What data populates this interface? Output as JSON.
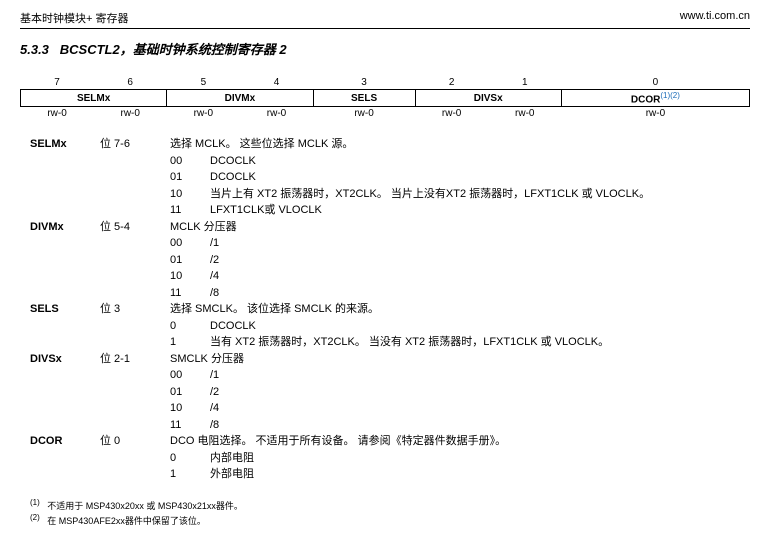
{
  "header": {
    "left": "基本时钟模块+ 寄存器",
    "right": "www.ti.com.cn"
  },
  "section": {
    "number": "5.3.3",
    "title": "BCSCTL2，基础时钟系统控制寄存器 2"
  },
  "bitsRow": [
    "7",
    "6",
    "5",
    "4",
    "3",
    "2",
    "1",
    "0"
  ],
  "fieldsRow": {
    "selmx": "SELMx",
    "divmx": "DIVMx",
    "sels": "SELS",
    "divsx": "DIVSx",
    "dcor": "DCOR",
    "dcor_sup": "(1)(2)"
  },
  "rwRow": [
    "rw-0",
    "rw-0",
    "rw-0",
    "rw-0",
    "rw-0",
    "rw-0",
    "rw-0",
    "rw-0"
  ],
  "fields": [
    {
      "name": "SELMx",
      "bits": "位 7-6",
      "summary": "选择 MCLK。 这些位选择 MCLK 源。",
      "values": [
        {
          "code": "00",
          "desc": "DCOCLK"
        },
        {
          "code": "01",
          "desc": "DCOCLK"
        },
        {
          "code": "10",
          "desc": "当片上有 XT2 振荡器时，XT2CLK。 当片上没有XT2 振荡器时，LFXT1CLK 或 VLOCLK。"
        },
        {
          "code": "11",
          "desc": "LFXT1CLK或 VLOCLK"
        }
      ]
    },
    {
      "name": "DIVMx",
      "bits": "位 5-4",
      "summary": "MCLK 分压器",
      "values": [
        {
          "code": "00",
          "desc": "/1"
        },
        {
          "code": "01",
          "desc": "/2"
        },
        {
          "code": "10",
          "desc": "/4"
        },
        {
          "code": "11",
          "desc": "/8"
        }
      ]
    },
    {
      "name": "SELS",
      "bits": "位 3",
      "summary": "选择 SMCLK。 该位选择 SMCLK 的来源。",
      "values": [
        {
          "code": "0",
          "desc": "DCOCLK"
        },
        {
          "code": "1",
          "desc": "当有 XT2 振荡器时，XT2CLK。 当没有 XT2 振荡器时，LFXT1CLK 或 VLOCLK。"
        }
      ]
    },
    {
      "name": "DIVSx",
      "bits": "位 2-1",
      "summary": "SMCLK 分压器",
      "values": [
        {
          "code": "00",
          "desc": "/1"
        },
        {
          "code": "01",
          "desc": "/2"
        },
        {
          "code": "10",
          "desc": "/4"
        },
        {
          "code": "11",
          "desc": "/8"
        }
      ]
    },
    {
      "name": "DCOR",
      "bits": "位 0",
      "summary": "DCO 电阻选择。 不适用于所有设备。 请参阅《特定器件数据手册》。",
      "values": [
        {
          "code": "0",
          "desc": "内部电阻"
        },
        {
          "code": "1",
          "desc": "外部电阻"
        }
      ]
    }
  ],
  "footnotes": [
    {
      "mark": "(1)",
      "text": "不适用于 MSP430x20xx 或 MSP430x21xx器件。"
    },
    {
      "mark": "(2)",
      "text": "在 MSP430AFE2xx器件中保留了该位。"
    }
  ]
}
